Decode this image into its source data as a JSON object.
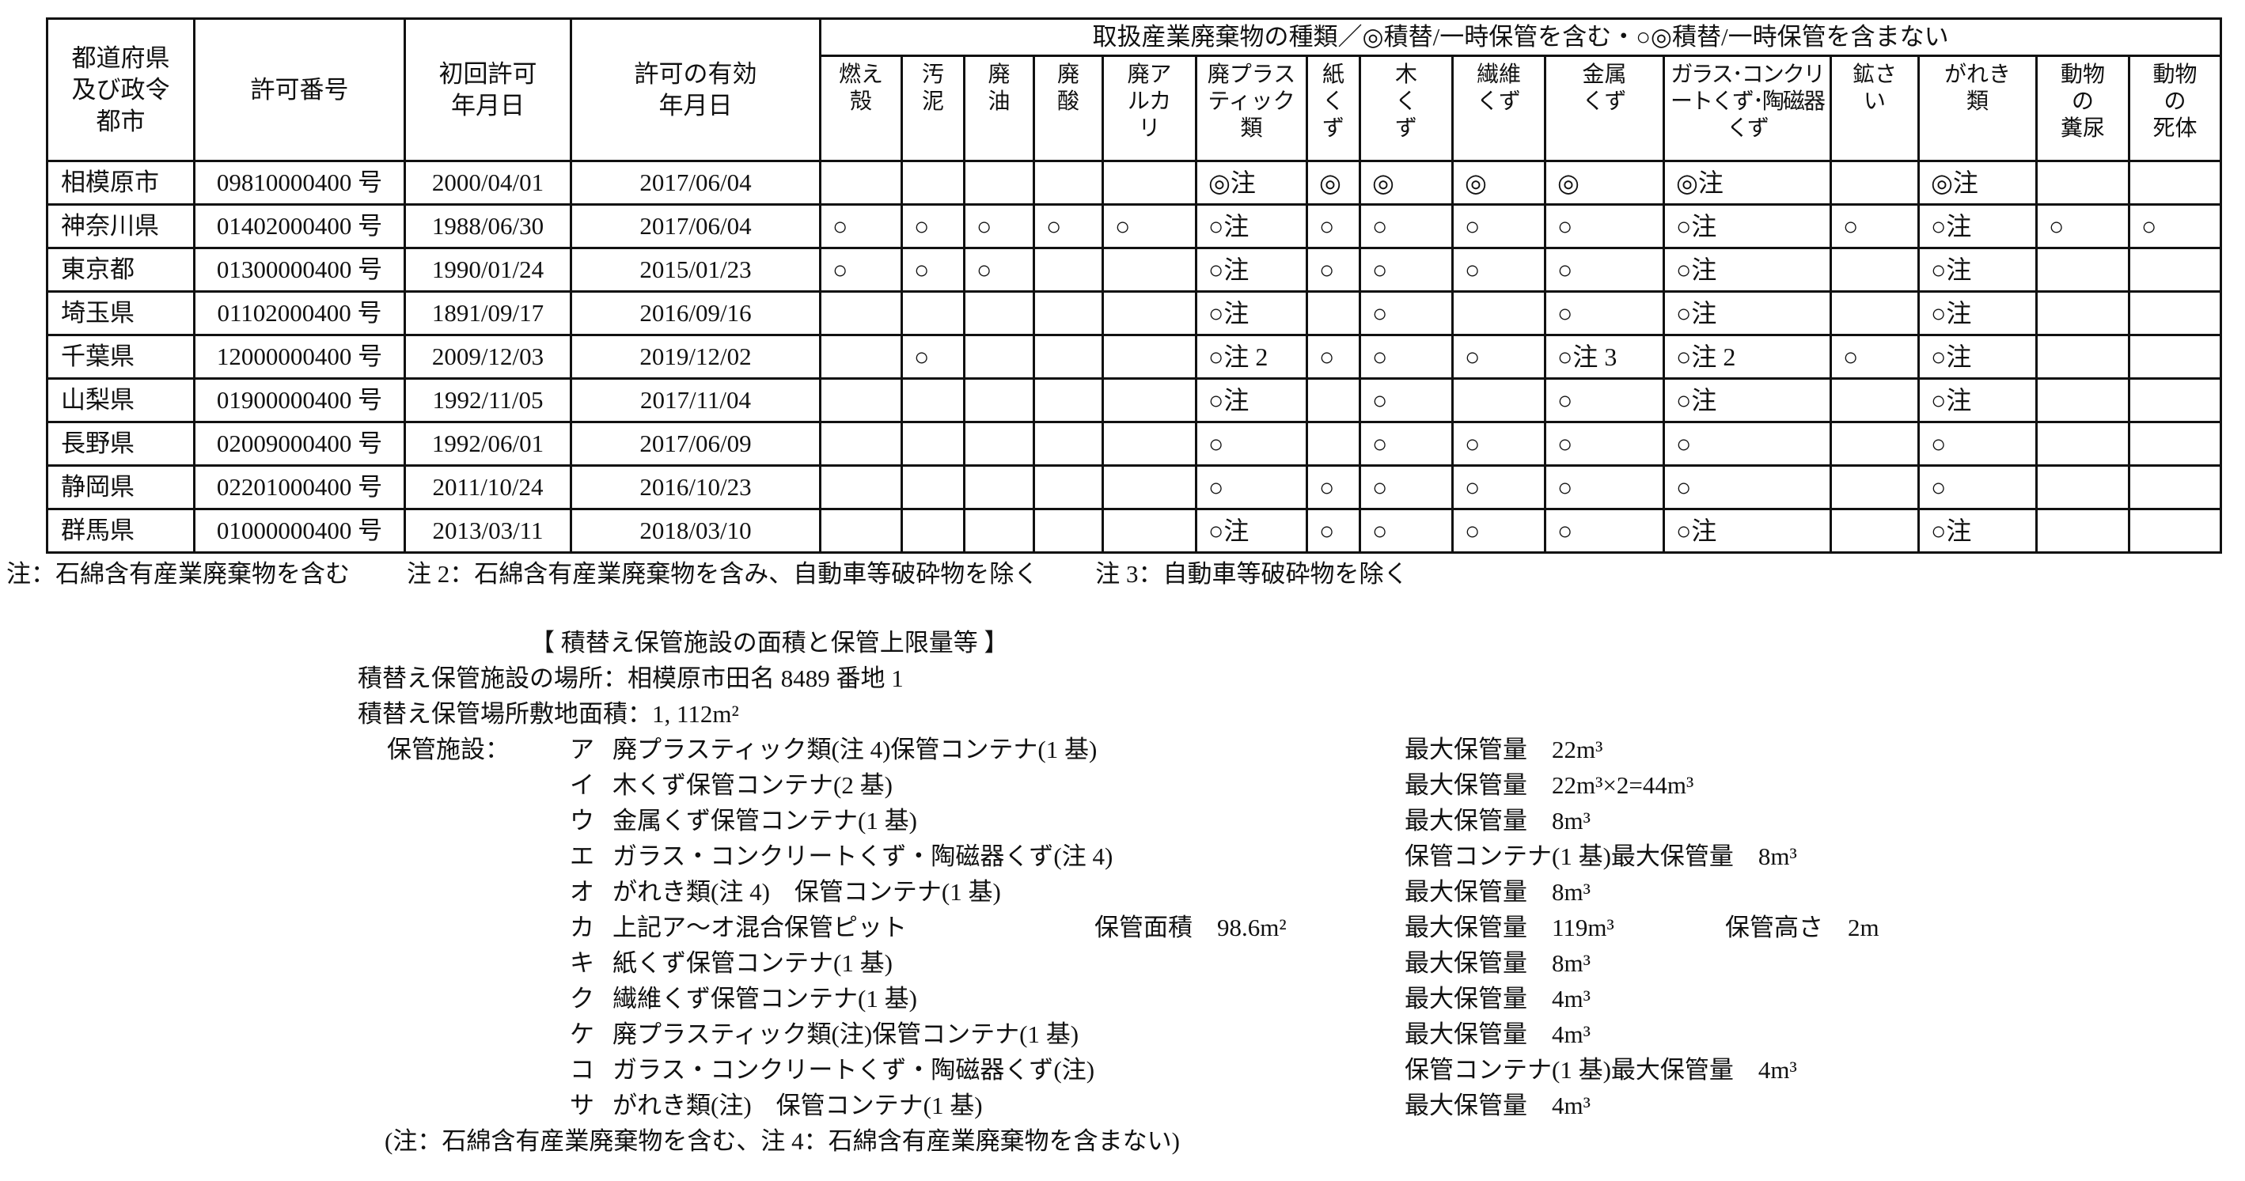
{
  "table": {
    "headers": {
      "prefecture": "都道府県\n及び政令\n都市",
      "permit_no": "許可番号",
      "first_date": "初回許可\n年月日",
      "valid_date": "許可の有効\n年月日",
      "types_title": "取扱産業廃棄物の種類／◎積替/一時保管を含む・○◎積替/一時保管を含まない",
      "types": [
        "燃え\n殻",
        "汚\n泥",
        "廃\n油",
        "廃\n酸",
        "廃ア\nルカ\nリ",
        "廃プラス\nティック\n類",
        "紙\nく\nず",
        "木\nく\nず",
        "繊維\nくず",
        "金属\nくず",
        "ガラス･コンクリ\nートくず･陶磁器\nくず",
        "鉱さ\nい",
        "がれき\n類",
        "動物\nの\n糞尿",
        "動物\nの\n死体"
      ]
    },
    "rows": [
      {
        "prefecture": "相模原市",
        "permit_no": "09810000400 号",
        "first_date": "2000/04/01",
        "valid_date": "2017/06/04",
        "marks": [
          "",
          "",
          "",
          "",
          "",
          "◎注",
          "◎",
          "◎",
          "◎",
          "◎",
          "◎注",
          "",
          "◎注",
          "",
          ""
        ]
      },
      {
        "prefecture": "神奈川県",
        "permit_no": "01402000400 号",
        "first_date": "1988/06/30",
        "valid_date": "2017/06/04",
        "marks": [
          "○",
          "○",
          "○",
          "○",
          "○",
          "○注",
          "○",
          "○",
          "○",
          "○",
          "○注",
          "○",
          "○注",
          "○",
          "○"
        ]
      },
      {
        "prefecture": "東京都",
        "permit_no": "01300000400 号",
        "first_date": "1990/01/24",
        "valid_date": "2015/01/23",
        "marks": [
          "○",
          "○",
          "○",
          "",
          "",
          "○注",
          "○",
          "○",
          "○",
          "○",
          "○注",
          "",
          "○注",
          "",
          ""
        ]
      },
      {
        "prefecture": "埼玉県",
        "permit_no": "01102000400 号",
        "first_date": "1891/09/17",
        "valid_date": "2016/09/16",
        "marks": [
          "",
          "",
          "",
          "",
          "",
          "○注",
          "",
          "○",
          "",
          "○",
          "○注",
          "",
          "○注",
          "",
          ""
        ]
      },
      {
        "prefecture": "千葉県",
        "permit_no": "12000000400 号",
        "first_date": "2009/12/03",
        "valid_date": "2019/12/02",
        "marks": [
          "",
          "○",
          "",
          "",
          "",
          "○注 2",
          "○",
          "○",
          "○",
          "○注 3",
          "○注 2",
          "○",
          "○注",
          "",
          ""
        ]
      },
      {
        "prefecture": "山梨県",
        "permit_no": "01900000400 号",
        "first_date": "1992/11/05",
        "valid_date": "2017/11/04",
        "marks": [
          "",
          "",
          "",
          "",
          "",
          "○注",
          "",
          "○",
          "",
          "○",
          "○注",
          "",
          "○注",
          "",
          ""
        ]
      },
      {
        "prefecture": "長野県",
        "permit_no": "02009000400 号",
        "first_date": "1992/06/01",
        "valid_date": "2017/06/09",
        "marks": [
          "",
          "",
          "",
          "",
          "",
          "○",
          "",
          "○",
          "○",
          "○",
          "○",
          "",
          "○",
          "",
          ""
        ]
      },
      {
        "prefecture": "静岡県",
        "permit_no": "02201000400 号",
        "first_date": "2011/10/24",
        "valid_date": "2016/10/23",
        "marks": [
          "",
          "",
          "",
          "",
          "",
          "○",
          "○",
          "○",
          "○",
          "○",
          "○",
          "",
          "○",
          "",
          ""
        ]
      },
      {
        "prefecture": "群馬県",
        "permit_no": "01000000400 号",
        "first_date": "2013/03/11",
        "valid_date": "2018/03/10",
        "marks": [
          "",
          "",
          "",
          "",
          "",
          "○注",
          "○",
          "○",
          "○",
          "○",
          "○注",
          "",
          "○注",
          "",
          ""
        ]
      }
    ],
    "notes": [
      "注：石綿含有産業廃棄物を含む",
      "注 2：石綿含有産業廃棄物を含み、自動車等破砕物を除く",
      "注 3：自動車等破砕物を除く"
    ]
  },
  "storage": {
    "title": "【 積替え保管施設の面積と保管上限量等 】",
    "location": "積替え保管施設の場所：相模原市田名 8489 番地 1",
    "site_area": "積替え保管場所敷地面積：1, 112m²",
    "facilities_label": "保管施設：",
    "items": [
      {
        "letter": "ア",
        "text": "廃プラスティック類(注 4)保管コンテナ(1 基)",
        "area": "",
        "max": "最大保管量　22m³",
        "extra": ""
      },
      {
        "letter": "イ",
        "text": "木くず保管コンテナ(2 基)",
        "area": "",
        "max": "最大保管量　22m³×2=44m³",
        "extra": ""
      },
      {
        "letter": "ウ",
        "text": "金属くず保管コンテナ(1 基)",
        "area": "",
        "max": "最大保管量　8m³",
        "extra": ""
      },
      {
        "letter": "エ",
        "text": "ガラス・コンクリートくず・陶磁器くず(注 4)",
        "area": "",
        "max": "保管コンテナ(1 基)最大保管量　8m³",
        "extra": ""
      },
      {
        "letter": "オ",
        "text": "がれき類(注 4)　保管コンテナ(1 基)",
        "area": "",
        "max": "最大保管量　8m³",
        "extra": ""
      },
      {
        "letter": "カ",
        "text": "上記ア～オ混合保管ピット",
        "area": "保管面積　98.6m²",
        "max": "最大保管量　119m³",
        "extra": "保管高さ　2m"
      },
      {
        "letter": "キ",
        "text": "紙くず保管コンテナ(1 基)",
        "area": "",
        "max": "最大保管量　8m³",
        "extra": ""
      },
      {
        "letter": "ク",
        "text": "繊維くず保管コンテナ(1 基)",
        "area": "",
        "max": "最大保管量　4m³",
        "extra": ""
      },
      {
        "letter": "ケ",
        "text": "廃プラスティック類(注)保管コンテナ(1 基)",
        "area": "",
        "max": "最大保管量　4m³",
        "extra": ""
      },
      {
        "letter": "コ",
        "text": "ガラス・コンクリートくず・陶磁器くず(注)",
        "area": "",
        "max": "保管コンテナ(1 基)最大保管量　4m³",
        "extra": ""
      },
      {
        "letter": "サ",
        "text": "がれき類(注)　保管コンテナ(1 基)",
        "area": "",
        "max": "最大保管量　4m³",
        "extra": ""
      }
    ],
    "footnote": "(注：石綿含有産業廃棄物を含む、注 4：石綿含有産業廃棄物を含まない)"
  }
}
